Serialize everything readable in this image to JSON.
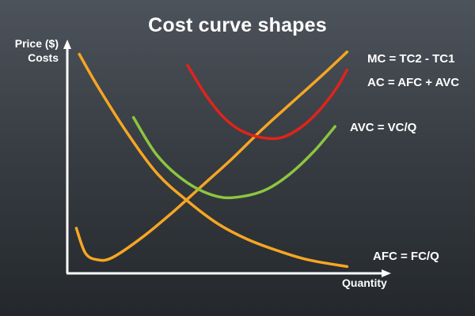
{
  "chart_data": {
    "type": "line",
    "title": "Cost curve shapes",
    "ylabel": [
      "Price ($)",
      "Costs"
    ],
    "xlabel": "Quantity",
    "xlim": [
      0,
      10
    ],
    "ylim": [
      0,
      10
    ],
    "grid": false,
    "legend": "curve labels at right end of each line",
    "series": [
      {
        "name": "MC = TC2 - TC1",
        "color": "#f6a623",
        "x": [
          0.3,
          0.6,
          1,
          1.5,
          2.5,
          3.5,
          4.5,
          5.5,
          6.5,
          7.5,
          8.5,
          9.3
        ],
        "y": [
          2.0,
          0.9,
          0.6,
          0.7,
          1.6,
          2.7,
          3.9,
          5.1,
          6.4,
          7.6,
          8.8,
          9.8
        ]
      },
      {
        "name": "AC = AFC + AVC",
        "color": "#e2231a",
        "x": [
          4,
          4.6,
          5.2,
          5.8,
          6.5,
          7.1,
          7.7,
          8.3,
          8.9,
          9.3
        ],
        "y": [
          9.2,
          7.9,
          6.9,
          6.3,
          6.0,
          6.0,
          6.4,
          7.1,
          8.1,
          9.0
        ]
      },
      {
        "name": "AVC = VC/Q",
        "color": "#8cc63f",
        "x": [
          2.2,
          3,
          4,
          5,
          5.8,
          6.6,
          7.4,
          8.2,
          8.9
        ],
        "y": [
          6.9,
          5.2,
          4.0,
          3.4,
          3.4,
          3.7,
          4.4,
          5.4,
          6.5
        ]
      },
      {
        "name": "AFC = FC/Q",
        "color": "#f6a623",
        "x": [
          0.4,
          1,
          2,
          3,
          4,
          5,
          6,
          7,
          8,
          9.3
        ],
        "y": [
          9.7,
          8.3,
          6.2,
          4.4,
          3.2,
          2.2,
          1.5,
          1.0,
          0.6,
          0.3
        ]
      }
    ]
  }
}
